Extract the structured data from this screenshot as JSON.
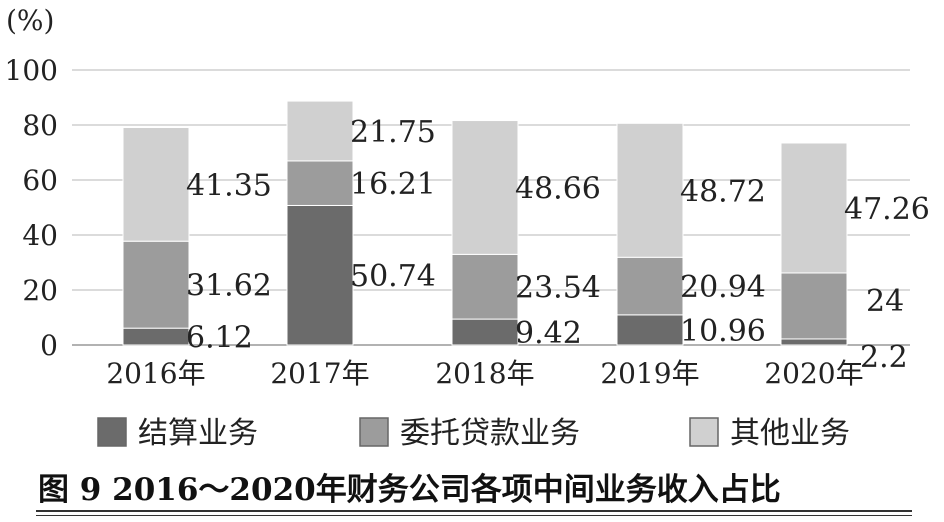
{
  "chart_data": {
    "type": "bar",
    "stacked": true,
    "unit_label": "(%)",
    "categories": [
      "2016年",
      "2017年",
      "2018年",
      "2019年",
      "2020年"
    ],
    "series": [
      {
        "name": "结算业务",
        "values": [
          6.12,
          50.74,
          9.42,
          10.96,
          2.2
        ],
        "color": "#6b6b6b"
      },
      {
        "name": "委托贷款业务",
        "values": [
          31.62,
          16.21,
          23.54,
          20.94,
          24
        ],
        "color": "#9c9c9c"
      },
      {
        "name": "其他业务",
        "values": [
          41.35,
          21.75,
          48.66,
          48.72,
          47.26
        ],
        "color": "#d0d0d0"
      }
    ],
    "data_labels": [
      [
        "6.12",
        "50.74",
        "9.42",
        "10.96",
        "2.2"
      ],
      [
        "31.62",
        "16.21",
        "23.54",
        "20.94",
        "24"
      ],
      [
        "41.35",
        "21.75",
        "48.66",
        "48.72",
        "47.26"
      ]
    ],
    "ylim": [
      0,
      100
    ],
    "yticks": [
      "0",
      "20",
      "40",
      "60",
      "80",
      "100"
    ],
    "grid": true,
    "legend_position": "bottom"
  },
  "caption": "图 9  2016～2020年财务公司各项中间业务收入占比"
}
